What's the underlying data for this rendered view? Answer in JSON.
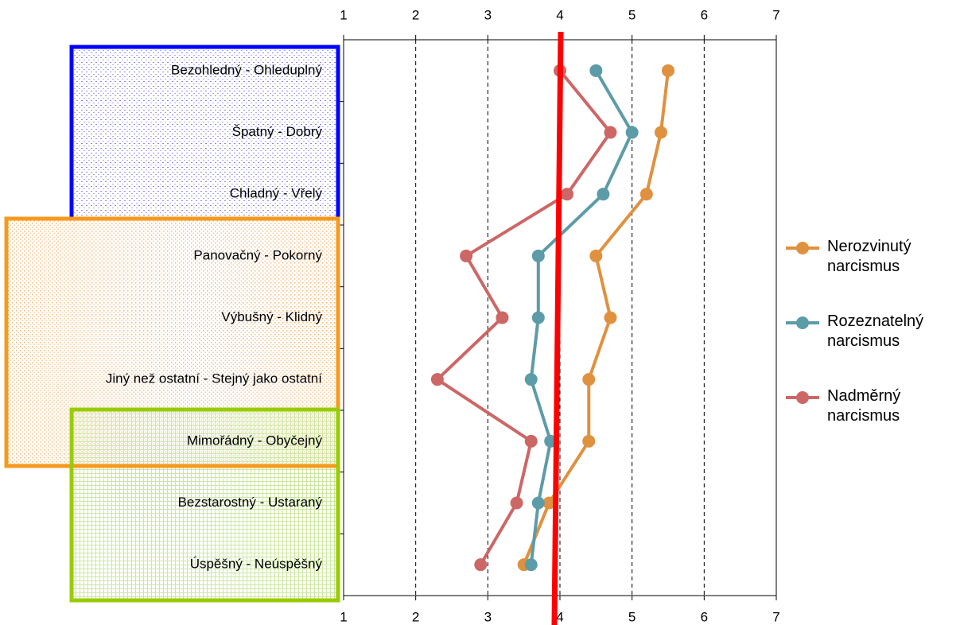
{
  "chart_data": {
    "type": "line",
    "categories": [
      "Bezohledný - Ohleduplný",
      "Špatný - Dobrý",
      "Chladný - Vřelý",
      "Panovačný - Pokorný",
      "Výbušný - Klidný",
      "Jiný než ostatní - Stejný jako ostatní",
      "Mimořádný - Obyčejný",
      "Bezstarostný - Ustaraný",
      "Úspěšný - Neúspěšný"
    ],
    "series": [
      {
        "name": "Nerozvinutý narcismus",
        "color": "#e0913f",
        "values": [
          5.5,
          5.4,
          5.2,
          4.5,
          4.7,
          4.4,
          4.4,
          3.85,
          3.5
        ]
      },
      {
        "name": "Rozeznatelný narcismus",
        "color": "#5c9ca8",
        "values": [
          4.5,
          5.0,
          4.6,
          3.7,
          3.7,
          3.6,
          3.87,
          3.7,
          3.6
        ]
      },
      {
        "name": "Nadměrný narcismus",
        "color": "#cc6766",
        "values": [
          4.0,
          4.7,
          4.1,
          2.7,
          3.2,
          2.3,
          3.6,
          3.4,
          2.9
        ]
      }
    ],
    "xlim": [
      1,
      7
    ],
    "xticks": [
      1,
      2,
      3,
      4,
      5,
      6,
      7
    ],
    "grid": true,
    "legend": "right"
  }
}
